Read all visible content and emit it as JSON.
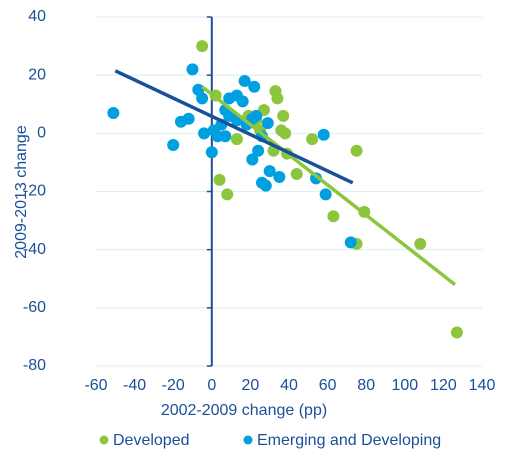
{
  "chart_data": {
    "type": "scatter",
    "x_label": "2002-2009 change (pp)",
    "y_label": "2009-2013 change",
    "xlim": [
      -60,
      140
    ],
    "xticks": [
      -60,
      -40,
      -20,
      0,
      20,
      40,
      60,
      80,
      100,
      120,
      140
    ],
    "ylim": [
      -80,
      40
    ],
    "yticks": [
      -80,
      -60,
      -40,
      -20,
      0,
      20,
      40
    ],
    "grid": true,
    "legend": "bottom",
    "series": [
      {
        "name": "Developed",
        "color": "#8cc63f",
        "x": [
          -5,
          33,
          34,
          37,
          36,
          38,
          39,
          32,
          52,
          44,
          75,
          63,
          79,
          75,
          108,
          127,
          4,
          8,
          13,
          2,
          23,
          27,
          19,
          25
        ],
        "values": [
          30,
          14.5,
          12,
          6,
          1,
          0,
          -7,
          -6,
          -2,
          -14,
          -6,
          -28.5,
          -27,
          -38,
          -38,
          -68.5,
          -16,
          -21,
          -2,
          13,
          4.5,
          8,
          6,
          1
        ],
        "trend_x": [
          -5,
          126
        ],
        "trend_y": [
          16,
          -52
        ]
      },
      {
        "name": "Emerging and Developing",
        "color": "#00a0e0",
        "x": [
          -51,
          -20,
          -10,
          -16,
          -12,
          -7,
          -5,
          -4,
          0,
          1,
          5,
          7,
          9,
          13,
          17,
          22,
          16,
          21,
          23,
          26,
          21,
          24,
          26,
          28,
          30,
          35,
          29,
          54,
          59,
          58,
          72,
          7,
          3,
          13,
          18,
          9
        ],
        "values": [
          7,
          -4,
          22,
          4,
          5,
          15,
          12,
          0,
          -6.5,
          1,
          3,
          8,
          12,
          13,
          18,
          16,
          11,
          5,
          6,
          -1,
          -9,
          -6,
          -17,
          -18,
          -13,
          -15,
          3.5,
          -15.5,
          -21,
          -0.5,
          -37.5,
          -1,
          -1,
          4.5,
          3,
          6
        ],
        "trend_x": [
          -50,
          73
        ],
        "trend_y": [
          21.5,
          -17
        ]
      }
    ]
  }
}
